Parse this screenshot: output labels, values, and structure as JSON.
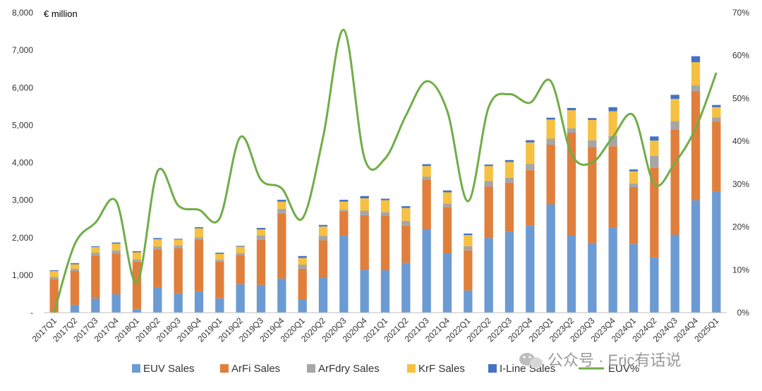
{
  "chart_data": {
    "type": "bar",
    "stacked": true,
    "unit_label": "€ million",
    "categories": [
      "2017Q1",
      "2017Q2",
      "2017Q3",
      "2017Q4",
      "2018Q1",
      "2018Q2",
      "2018Q3",
      "2018Q4",
      "2019Q1",
      "2019Q2",
      "2019Q3",
      "2019Q4",
      "2020Q1",
      "2020Q2",
      "2020Q3",
      "2020Q4",
      "2021Q1",
      "2021Q2",
      "2021Q3",
      "2021Q4",
      "2022Q1",
      "2022Q2",
      "2022Q3",
      "2022Q4",
      "2023Q1",
      "2023Q2",
      "2023Q3",
      "2023Q4",
      "2024Q1",
      "2024Q2",
      "2024Q3",
      "2024Q4",
      "2025Q1"
    ],
    "series": [
      {
        "name": "EUV Sales",
        "color": "#6b9bd2",
        "values": [
          0,
          210,
          380,
          490,
          100,
          680,
          520,
          570,
          380,
          760,
          740,
          910,
          340,
          940,
          2050,
          1140,
          1130,
          1330,
          2230,
          1590,
          590,
          1990,
          2160,
          2330,
          2890,
          2070,
          1860,
          2270,
          1830,
          1470,
          2080,
          3000,
          3220
        ]
      },
      {
        "name": "ArFi Sales",
        "color": "#e07f3c",
        "values": [
          900,
          900,
          1150,
          1090,
          1260,
          1010,
          1200,
          1380,
          980,
          780,
          1200,
          1740,
          830,
          990,
          650,
          1460,
          1460,
          1000,
          1310,
          1230,
          1070,
          1370,
          1310,
          1470,
          1590,
          2730,
          2560,
          2170,
          1520,
          2390,
          2810,
          2910,
          1880
        ]
      },
      {
        "name": "ArFdry Sales",
        "color": "#a6a6a6",
        "values": [
          50,
          60,
          70,
          80,
          60,
          70,
          70,
          60,
          50,
          50,
          120,
          120,
          110,
          120,
          40,
          120,
          90,
          120,
          90,
          90,
          110,
          150,
          130,
          170,
          160,
          120,
          180,
          270,
          100,
          320,
          220,
          150,
          110
        ]
      },
      {
        "name": "KrF Sales",
        "color": "#f6c142",
        "values": [
          160,
          120,
          150,
          180,
          190,
          200,
          160,
          240,
          160,
          170,
          160,
          190,
          180,
          250,
          220,
          330,
          320,
          340,
          280,
          300,
          300,
          400,
          420,
          570,
          510,
          480,
          540,
          660,
          320,
          410,
          590,
          620,
          270
        ]
      },
      {
        "name": "I-Line Sales",
        "color": "#4472c4",
        "values": [
          20,
          30,
          20,
          30,
          30,
          30,
          20,
          30,
          30,
          20,
          40,
          50,
          50,
          40,
          50,
          60,
          40,
          50,
          50,
          50,
          40,
          40,
          50,
          60,
          50,
          60,
          50,
          110,
          50,
          110,
          110,
          160,
          60
        ]
      },
      {
        "name": "EUV%",
        "color": "#70ad47",
        "type": "line",
        "axis": "right",
        "values": [
          0,
          16,
          21,
          26,
          7,
          33,
          25,
          24,
          22,
          41,
          31,
          29,
          22,
          41,
          66,
          36,
          36,
          46,
          54,
          47,
          26,
          48,
          51,
          49,
          54,
          37,
          35,
          41,
          46,
          30,
          35,
          43,
          56
        ]
      }
    ],
    "y_left": {
      "min": 0,
      "max": 8000,
      "ticks": [
        0,
        1000,
        2000,
        3000,
        4000,
        5000,
        6000,
        7000,
        8000
      ],
      "tick_labels": [
        "-",
        "1,000",
        "2,000",
        "3,000",
        "4,000",
        "5,000",
        "6,000",
        "7,000",
        "8,000"
      ]
    },
    "y_right": {
      "min": 0,
      "max": 70,
      "ticks": [
        0,
        10,
        20,
        30,
        40,
        50,
        60,
        70
      ],
      "tick_labels": [
        "0%",
        "10%",
        "20%",
        "30%",
        "40%",
        "50%",
        "60%",
        "70%"
      ]
    },
    "grid": false,
    "legend_position": "bottom"
  },
  "watermark": {
    "text": "公众号 · Eric有话说"
  }
}
